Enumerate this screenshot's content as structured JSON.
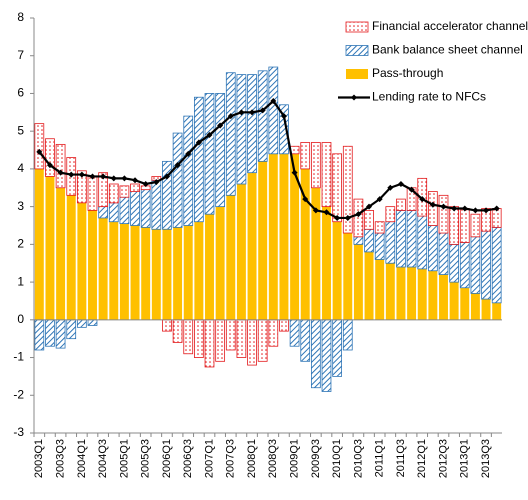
{
  "chart_data": {
    "type": "bar",
    "categories": [
      "2003Q1",
      null,
      "2003Q3",
      null,
      "2004Q1",
      null,
      "2004Q3",
      null,
      "2005Q1",
      null,
      "2005Q3",
      null,
      "2006Q1",
      null,
      "2006Q3",
      null,
      "2007Q1",
      null,
      "2007Q3",
      null,
      "2008Q1",
      null,
      "2008Q3",
      null,
      "2009Q1",
      null,
      "2009Q3",
      null,
      "2010Q1",
      null,
      "2010Q3",
      null,
      "2011Q1",
      null,
      "2011Q3",
      null,
      "2012Q1",
      null,
      "2012Q3",
      null,
      "2013Q1",
      null,
      "2013Q3",
      null
    ],
    "series": [
      {
        "name": "Financial accelerator channel",
        "type": "bar",
        "color": "#e31a1c",
        "pattern": "dots",
        "values": [
          1.2,
          1.0,
          1.15,
          1.0,
          0.85,
          0.9,
          0.9,
          0.5,
          0.3,
          0.2,
          0.1,
          0.1,
          -0.3,
          -0.6,
          -0.9,
          -1.0,
          -1.25,
          -1.1,
          -0.8,
          -1.0,
          -1.2,
          -1.1,
          -0.7,
          -0.3,
          0.2,
          0.7,
          1.2,
          1.7,
          1.8,
          2.3,
          1.0,
          0.5,
          0.3,
          0.4,
          0.3,
          0.6,
          1.0,
          0.9,
          1.0,
          1.0,
          0.9,
          0.6,
          0.6,
          0.5
        ]
      },
      {
        "name": "Bank balance sheet channel",
        "type": "bar",
        "color": "#2e75b6",
        "pattern": "hatch",
        "values": [
          -0.8,
          -0.7,
          -0.75,
          -0.5,
          -0.2,
          -0.15,
          0.3,
          0.5,
          0.7,
          0.9,
          1.0,
          1.3,
          1.8,
          2.5,
          2.9,
          3.3,
          3.2,
          3.0,
          3.25,
          2.9,
          2.6,
          2.4,
          2.3,
          1.3,
          -0.7,
          -1.1,
          -1.8,
          -1.9,
          -1.5,
          -0.8,
          0.2,
          0.6,
          0.7,
          1.1,
          1.5,
          1.5,
          1.4,
          1.2,
          1.1,
          1.0,
          1.2,
          1.5,
          1.8,
          2.0
        ]
      },
      {
        "name": "Pass-through",
        "type": "bar",
        "color": "#ffc000",
        "pattern": "solid",
        "values": [
          4.0,
          3.8,
          3.5,
          3.3,
          3.1,
          2.9,
          2.7,
          2.6,
          2.55,
          2.5,
          2.45,
          2.4,
          2.4,
          2.45,
          2.5,
          2.6,
          2.8,
          3.0,
          3.3,
          3.6,
          3.9,
          4.2,
          4.4,
          4.4,
          4.4,
          4.0,
          3.5,
          3.0,
          2.6,
          2.3,
          2.0,
          1.8,
          1.6,
          1.5,
          1.4,
          1.4,
          1.35,
          1.3,
          1.2,
          1.0,
          0.85,
          0.7,
          0.55,
          0.45
        ]
      },
      {
        "name": "Lending rate to NFCs",
        "type": "line",
        "color": "#000000",
        "values": [
          4.45,
          4.1,
          3.9,
          3.85,
          3.85,
          3.8,
          3.8,
          3.75,
          3.75,
          3.7,
          3.6,
          3.65,
          3.8,
          4.1,
          4.4,
          4.7,
          4.9,
          5.15,
          5.4,
          5.5,
          5.5,
          5.55,
          5.8,
          5.4,
          3.9,
          3.2,
          2.9,
          2.85,
          2.7,
          2.7,
          2.8,
          3.0,
          3.2,
          3.5,
          3.6,
          3.45,
          3.2,
          3.05,
          3.0,
          2.95,
          2.95,
          2.9,
          2.9,
          2.95
        ]
      }
    ],
    "ylim": [
      -3,
      8
    ],
    "yticks": [
      -3,
      -2,
      -1,
      0,
      1,
      2,
      3,
      4,
      5,
      6,
      7,
      8
    ],
    "grid": false,
    "stacked": true,
    "legend": "top-right"
  }
}
